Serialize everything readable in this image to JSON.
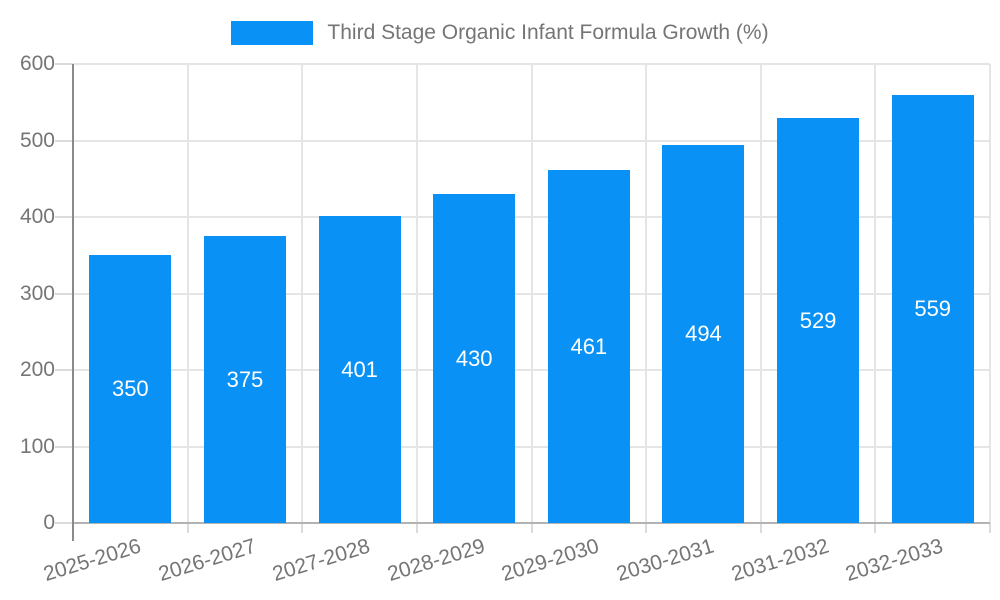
{
  "chart_data": {
    "type": "bar",
    "title": "Third Stage Organic Infant Formula Growth (%)",
    "categories": [
      "2025-2026",
      "2026-2027",
      "2027-2028",
      "2028-2029",
      "2029-2030",
      "2030-2031",
      "2031-2032",
      "2032-2033"
    ],
    "values": [
      350,
      375,
      401,
      430,
      461,
      494,
      529,
      559
    ],
    "xlabel": "",
    "ylabel": "",
    "ylim": [
      0,
      600
    ],
    "y_ticks": [
      0,
      100,
      200,
      300,
      400,
      500,
      600
    ],
    "grid": true,
    "legend_position": "top-center",
    "bar_labels_inside": true
  },
  "colors": {
    "bar": "#0A91F5",
    "bar_label": "#FFFFFF",
    "axis_text": "#757575",
    "gridline": "#E5E5E5",
    "x_axis_line": "#B3B3B3",
    "y_axis_spine": "#8A8A8A",
    "tick": "#DBDBDB",
    "background": "#FFFFFF"
  }
}
